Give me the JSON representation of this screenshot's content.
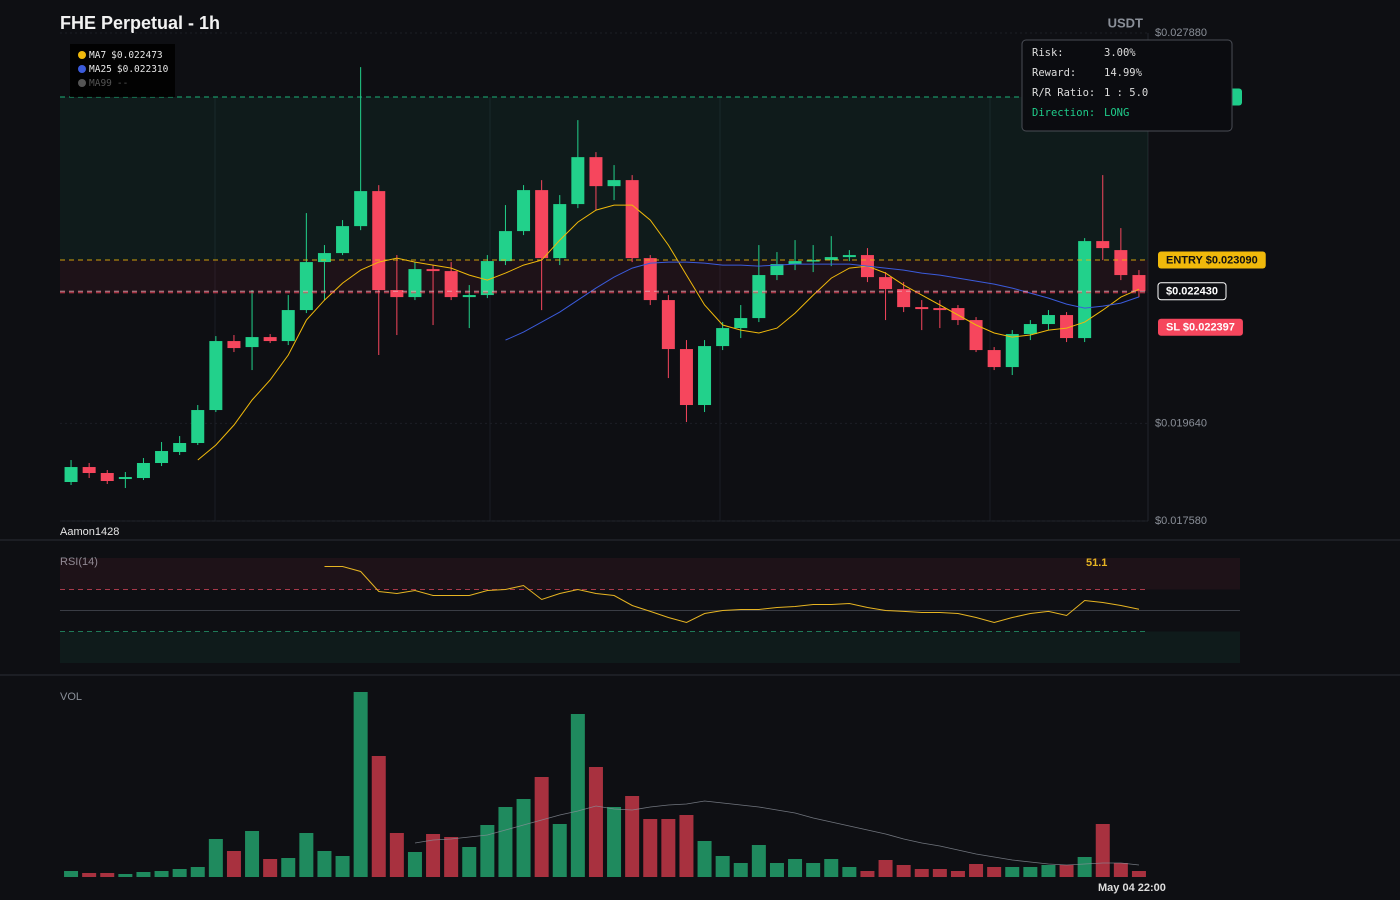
{
  "chart_data": [
    {
      "type": "candlestick",
      "title": "FHE Perpetual - 1h",
      "unit_label": "USDT",
      "watermark": "Aamon1428",
      "categories": [
        null,
        null,
        null,
        null,
        null,
        null,
        null,
        null,
        null,
        null,
        null,
        null,
        null,
        null,
        null,
        null,
        null,
        null,
        null,
        null,
        null,
        null,
        null,
        null,
        null,
        null,
        null,
        null,
        null,
        null,
        null,
        null,
        null,
        null,
        null,
        null,
        null,
        null,
        null,
        null,
        null,
        null,
        null,
        null,
        null,
        null,
        null,
        null,
        null,
        null,
        null,
        null,
        null,
        null,
        null,
        null,
        null,
        null,
        null,
        "May 04 22:00"
      ],
      "open": [
        0.018403,
        0.018719,
        0.018593,
        0.018466,
        0.018487,
        0.018804,
        0.019036,
        0.019226,
        0.019922,
        0.021378,
        0.021251,
        0.021462,
        0.021378,
        0.022032,
        0.023045,
        0.023235,
        0.023804,
        0.024543,
        0.022454,
        0.022306,
        0.022897,
        0.022855,
        0.022306,
        0.022349,
        0.023066,
        0.023699,
        0.024564,
        0.023129,
        0.024269,
        0.02526,
        0.024648,
        0.024775,
        0.023129,
        0.022243,
        0.021209,
        0.020028,
        0.021272,
        0.021652,
        0.021863,
        0.022771,
        0.023003,
        0.023066,
        0.023087,
        0.02315,
        0.023193,
        0.022728,
        0.022475,
        0.022095,
        0.022074,
        0.022074,
        0.021821,
        0.021188,
        0.020829,
        0.021526,
        0.021737,
        0.021927,
        0.021441,
        0.023488,
        0.023298,
        0.022771
      ],
      "high": [
        0.018867,
        0.018804,
        0.018656,
        0.018614,
        0.018909,
        0.019247,
        0.019373,
        0.020028,
        0.021483,
        0.021505,
        0.022454,
        0.021526,
        0.022349,
        0.024079,
        0.023404,
        0.023931,
        0.027159,
        0.02467,
        0.023193,
        0.023045,
        0.022982,
        0.023045,
        0.02256,
        0.023193,
        0.024248,
        0.02467,
        0.024775,
        0.024459,
        0.026041,
        0.025366,
        0.025092,
        0.024881,
        0.023193,
        0.022349,
        0.021399,
        0.021399,
        0.021779,
        0.022138,
        0.023404,
        0.023256,
        0.023509,
        0.023404,
        0.023593,
        0.023298,
        0.02334,
        0.022834,
        0.022623,
        0.022243,
        0.022243,
        0.022138,
        0.021884,
        0.021251,
        0.02161,
        0.021821,
        0.022032,
        0.02199,
        0.023551,
        0.024881,
        0.023762,
        0.022876
      ],
      "low": [
        0.01834,
        0.018487,
        0.018361,
        0.018276,
        0.018445,
        0.01874,
        0.018973,
        0.019184,
        0.01988,
        0.021146,
        0.020766,
        0.021336,
        0.021294,
        0.021969,
        0.022243,
        0.023193,
        0.02372,
        0.021083,
        0.021505,
        0.022243,
        0.021716,
        0.022243,
        0.021652,
        0.022285,
        0.022982,
        0.023615,
        0.022032,
        0.022982,
        0.024184,
        0.024142,
        0.024353,
        0.023045,
        0.022138,
        0.020597,
        0.019669,
        0.01988,
        0.021188,
        0.021441,
        0.021779,
        0.022665,
        0.022876,
        0.022834,
        0.02296,
        0.023066,
        0.022623,
        0.021821,
        0.02199,
        0.02161,
        0.021652,
        0.021716,
        0.021146,
        0.020766,
        0.020661,
        0.021399,
        0.02161,
        0.021357,
        0.021357,
        0.023087,
        0.022665,
        0.022306
      ],
      "close": [
        0.018719,
        0.018593,
        0.018424,
        0.018508,
        0.018804,
        0.019057,
        0.019226,
        0.019922,
        0.021378,
        0.02123,
        0.021462,
        0.021378,
        0.022032,
        0.023045,
        0.023235,
        0.023804,
        0.024543,
        0.022454,
        0.022306,
        0.022897,
        0.022855,
        0.022306,
        0.022349,
        0.023066,
        0.023699,
        0.024564,
        0.023129,
        0.024269,
        0.02526,
        0.024648,
        0.024775,
        0.023129,
        0.022243,
        0.021209,
        0.020028,
        0.021272,
        0.021652,
        0.021863,
        0.022771,
        0.023003,
        0.023066,
        0.023087,
        0.02315,
        0.023193,
        0.022728,
        0.022475,
        0.022095,
        0.022053,
        0.022032,
        0.021821,
        0.021188,
        0.020829,
        0.021526,
        0.021737,
        0.021927,
        0.021441,
        0.023488,
        0.02334,
        0.022771,
        0.02243
      ],
      "up_color": "#22d18b",
      "down_color": "#f6465d",
      "series": [
        {
          "name": "MA7",
          "color": "#f0b90b",
          "legend_value": "$0.022473",
          "values": [
            null,
            null,
            null,
            null,
            null,
            null,
            null,
            0.018867,
            0.019184,
            0.019606,
            0.020133,
            0.020555,
            0.021083,
            0.021821,
            0.022243,
            0.022602,
            0.022876,
            0.023045,
            0.023129,
            0.023045,
            0.022982,
            0.022918,
            0.022771,
            0.022665,
            0.022813,
            0.022982,
            0.023087,
            0.023509,
            0.023889,
            0.024142,
            0.024248,
            0.024248,
            0.023931,
            0.023404,
            0.022771,
            0.022138,
            0.021716,
            0.02161,
            0.021547,
            0.021652,
            0.021969,
            0.022349,
            0.022707,
            0.022918,
            0.02296,
            0.022813,
            0.02256,
            0.022349,
            0.022138,
            0.021927,
            0.021716,
            0.021547,
            0.021462,
            0.021505,
            0.02161,
            0.021652,
            0.021779,
            0.022032,
            0.022306,
            0.022473
          ]
        },
        {
          "name": "MA25",
          "color": "#3b5bdb",
          "legend_value": "$0.022310",
          "values": [
            null,
            null,
            null,
            null,
            null,
            null,
            null,
            null,
            null,
            null,
            null,
            null,
            null,
            null,
            null,
            null,
            null,
            null,
            null,
            null,
            null,
            null,
            null,
            null,
            0.021399,
            0.021568,
            0.021779,
            0.02199,
            0.022243,
            0.022496,
            0.022728,
            0.022918,
            0.023024,
            0.023045,
            0.023045,
            0.023024,
            0.022982,
            0.022982,
            0.02296,
            0.022982,
            0.023003,
            0.023003,
            0.023003,
            0.023003,
            0.02296,
            0.022918,
            0.022876,
            0.022813,
            0.022771,
            0.022707,
            0.022644,
            0.022581,
            0.022496,
            0.022391,
            0.022285,
            0.022159,
            0.022074,
            0.022116,
            0.02218,
            0.02231
          ]
        },
        {
          "name": "MA99",
          "color": "#555555",
          "legend_value": "--"
        }
      ],
      "levels": [
        {
          "value": 0.02653,
          "color": "#1fcc8a",
          "badge_color": "#1fcc8a"
        },
        {
          "value": 0.02309,
          "color": "#f0b90b",
          "label": "ENTRY $0.023090",
          "badge_color": "#f0b90b",
          "text_color": "#111111"
        },
        {
          "value": 0.02243,
          "color": "#e9a7b4",
          "label": "$0.022430",
          "badge_color": "#0e0f13",
          "text_color": "#ffffff",
          "badge_border": "#ffffff"
        },
        {
          "value": 0.022397,
          "color": "#f6465d",
          "label": "SL $0.022397",
          "badge_color": "#f6465d",
          "text_color": "#ffffff"
        }
      ],
      "zones": [
        {
          "levels": [
            0,
            1
          ],
          "color": "#1fcc8a"
        },
        {
          "levels": [
            1,
            3
          ],
          "color": "#f6465d"
        }
      ],
      "info_panel": [
        {
          "label": "Risk:",
          "value": "3.00%"
        },
        {
          "label": "Reward:",
          "value": "14.99%"
        },
        {
          "label": "R/R Ratio:",
          "value": "1 : 5.0"
        },
        {
          "label": "Direction:",
          "value": "LONG",
          "color": "#1fcc8a"
        }
      ],
      "ylim": [
        0.01758,
        0.02788
      ],
      "yticks": [
        {
          "value": 0.01758,
          "label": "$0.017580"
        },
        {
          "value": 0.01964,
          "label": "$0.019640"
        },
        {
          "value": 0.02788,
          "label": "$0.027880"
        }
      ],
      "grid": true
    },
    {
      "type": "line",
      "title": "RSI(14)",
      "series": [
        {
          "name": "RSI(14)",
          "color": "#e6b422",
          "values": [
            null,
            null,
            null,
            null,
            null,
            null,
            null,
            null,
            null,
            null,
            null,
            null,
            null,
            null,
            91.9,
            91.9,
            87.1,
            68.1,
            66.2,
            69.0,
            64.3,
            64.3,
            64.3,
            69.0,
            70.0,
            73.8,
            60.5,
            66.2,
            70.0,
            66.2,
            64.3,
            54.8,
            49.1,
            43.3,
            38.6,
            47.1,
            50.0,
            51.0,
            51.0,
            52.9,
            53.8,
            55.7,
            55.7,
            56.7,
            52.9,
            50.0,
            49.1,
            48.1,
            48.1,
            47.1,
            43.3,
            38.6,
            43.3,
            47.1,
            49.1,
            45.2,
            59.5,
            57.6,
            54.8,
            51.1
          ]
        }
      ],
      "ylim": [
        0,
        100
      ],
      "bands": [
        {
          "from": 70,
          "to": 100,
          "color": "#f6465d"
        },
        {
          "from": 0,
          "to": 30,
          "color": "#1fcc8a"
        }
      ],
      "levels": [
        {
          "value": 70,
          "color": "#a8394a",
          "dashed": true
        },
        {
          "value": 50,
          "color": "#3a3d45"
        },
        {
          "value": 30,
          "color": "#1f7a58",
          "dashed": true
        }
      ]
    },
    {
      "type": "bar",
      "title": "VOL",
      "values": [
        6,
        4,
        4,
        3,
        5,
        6,
        8,
        10,
        38,
        26,
        46,
        18,
        19,
        44,
        26,
        21,
        185,
        121,
        44,
        25,
        43,
        40,
        30,
        52,
        70,
        78,
        100,
        53,
        163,
        110,
        70,
        81,
        58,
        58,
        62,
        36,
        21,
        14,
        32,
        14,
        18,
        14,
        18,
        10,
        6,
        17,
        12,
        8,
        8,
        6,
        13,
        10,
        10,
        10,
        12,
        12,
        20,
        53,
        14,
        6
      ],
      "ma_values": [
        null,
        null,
        null,
        null,
        null,
        null,
        null,
        null,
        null,
        null,
        null,
        null,
        null,
        null,
        null,
        null,
        null,
        null,
        null,
        34,
        37,
        38,
        40,
        42,
        47,
        52,
        57,
        62,
        66,
        71,
        68,
        67,
        70,
        72,
        73,
        76,
        74,
        72,
        70,
        67,
        64,
        59,
        55,
        51,
        47,
        43,
        38,
        34,
        31,
        27,
        23,
        20,
        17,
        15,
        13,
        12,
        13,
        14,
        14,
        12
      ],
      "ma_color": "#8a8f98",
      "up_color": "#1f8a5e",
      "down_color": "#a8313f",
      "ylim": [
        0,
        185
      ]
    }
  ]
}
